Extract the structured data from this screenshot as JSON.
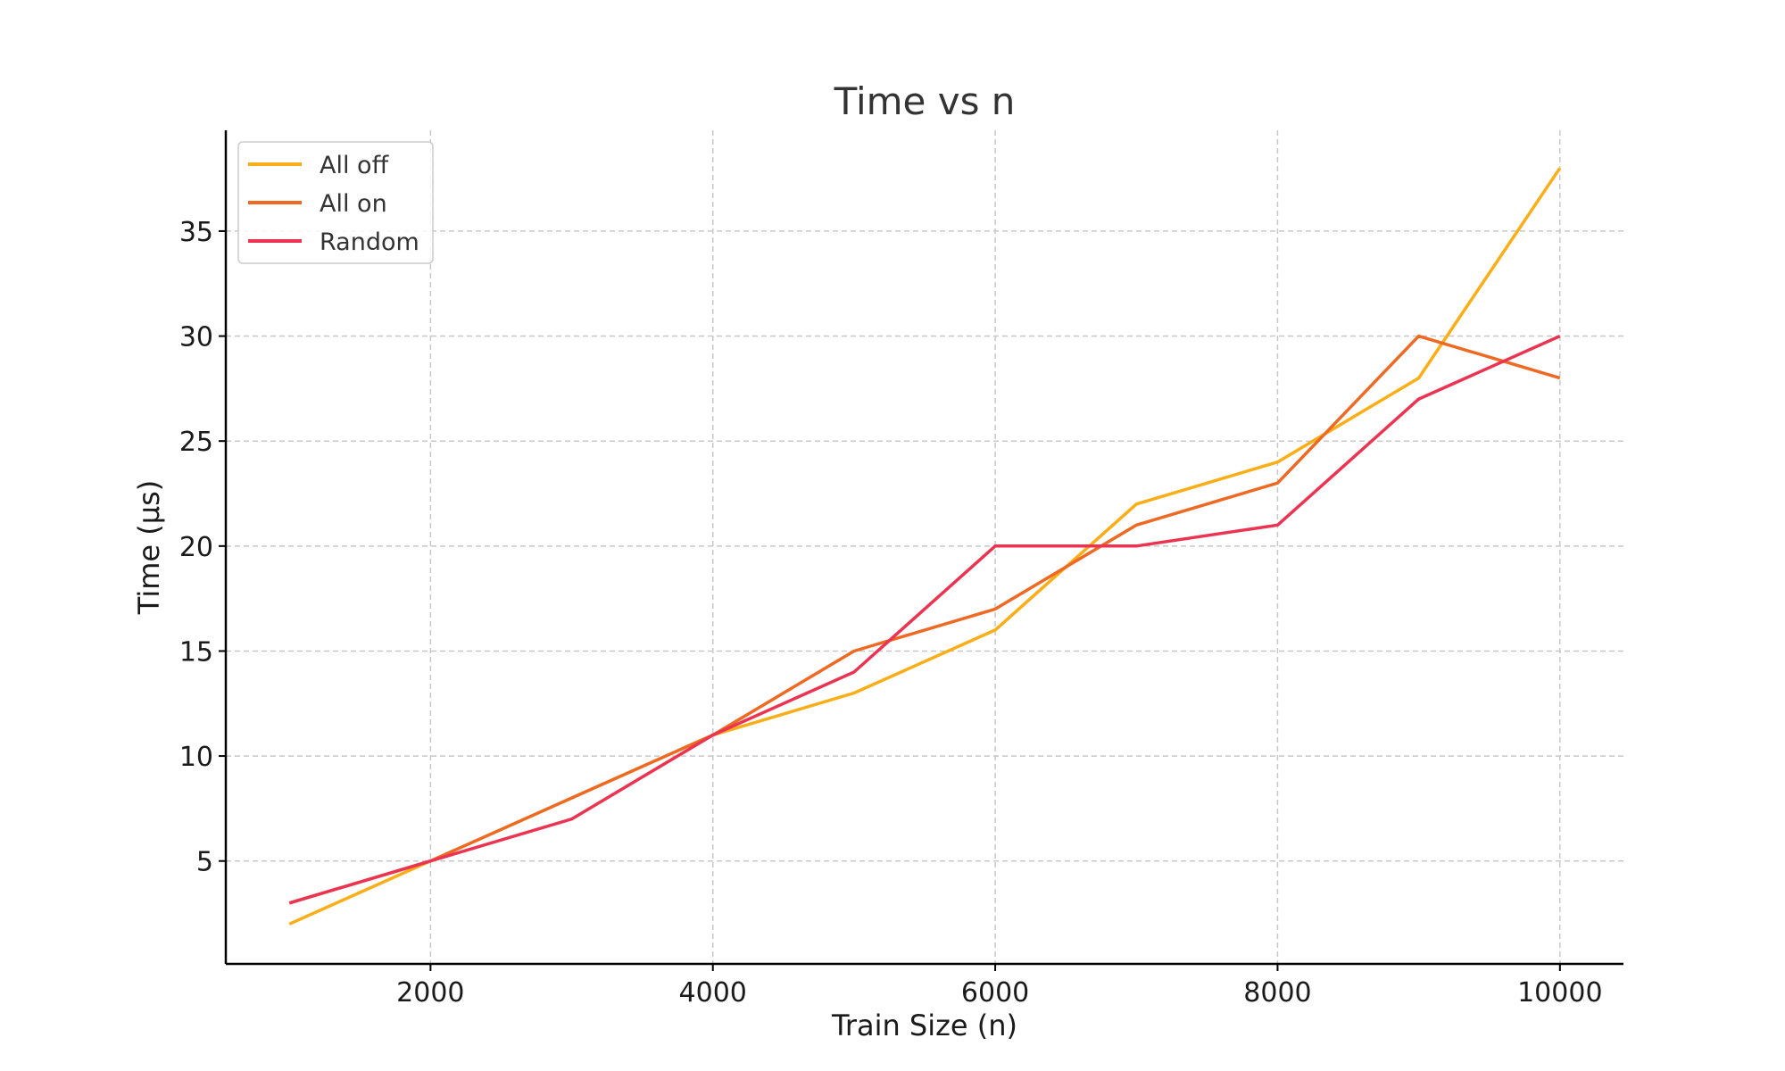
{
  "chart_data": {
    "type": "line",
    "title": "Time vs n",
    "xlabel": "Train Size (n)",
    "ylabel": "Time (µs)",
    "x": [
      1000,
      2000,
      3000,
      4000,
      5000,
      6000,
      7000,
      8000,
      9000,
      10000
    ],
    "xlim": [
      550,
      10450
    ],
    "ylim": [
      0.1,
      39.8
    ],
    "xticks": [
      2000,
      4000,
      6000,
      8000,
      10000
    ],
    "yticks": [
      5,
      10,
      15,
      20,
      25,
      30,
      35
    ],
    "xtick_labels": [
      "2000",
      "4000",
      "6000",
      "8000",
      "10000"
    ],
    "ytick_labels": [
      "5",
      "10",
      "15",
      "20",
      "25",
      "30",
      "35"
    ],
    "grid": true,
    "legend_position": "top-left",
    "series": [
      {
        "name": "All off",
        "color": "#FBAE17",
        "values": [
          2,
          5,
          8,
          11,
          13,
          16,
          22,
          24,
          28,
          38
        ]
      },
      {
        "name": "All on",
        "color": "#EE6A24",
        "values": [
          3,
          5,
          8,
          11,
          15,
          17,
          21,
          23,
          30,
          28
        ]
      },
      {
        "name": "Random",
        "color": "#EB3451",
        "values": [
          3,
          5,
          7,
          11,
          14,
          20,
          20,
          21,
          27,
          30
        ]
      }
    ]
  }
}
